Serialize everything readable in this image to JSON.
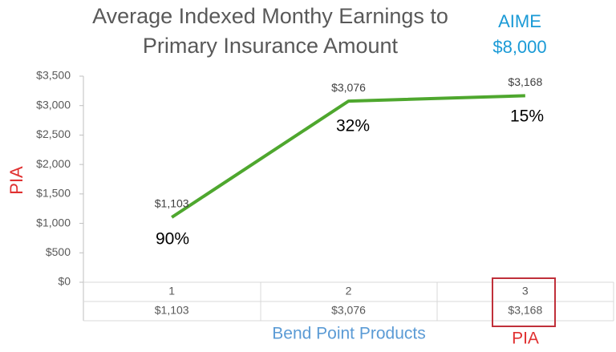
{
  "chart_data": {
    "type": "line",
    "title": [
      "Average Indexed Monthy Earnings to",
      "Primary Insurance Amount"
    ],
    "categories": [
      "1",
      "2",
      "3"
    ],
    "series": [
      {
        "name": "PIA",
        "color": "#4ea72e",
        "values": [
          1103,
          3076,
          3168
        ],
        "value_labels": [
          "$1,103",
          "$3,076",
          "$3,168"
        ]
      }
    ],
    "ylim": [
      0,
      3500
    ],
    "yticks": [
      {
        "value": 0,
        "label": "$0"
      },
      {
        "value": 500,
        "label": "$500"
      },
      {
        "value": 1000,
        "label": "$1,000"
      },
      {
        "value": 1500,
        "label": "$1,500"
      },
      {
        "value": 2000,
        "label": "$2,000"
      },
      {
        "value": 2500,
        "label": "$2,500"
      },
      {
        "value": 3000,
        "label": "$3,000"
      },
      {
        "value": 3500,
        "label": "$3,500"
      }
    ],
    "grid": false,
    "x_label": "Bend Point Products",
    "y_label": "PIA",
    "annotations": [
      "AIME",
      "$8,000",
      "90%",
      "32%",
      "15%",
      "PIA"
    ]
  }
}
